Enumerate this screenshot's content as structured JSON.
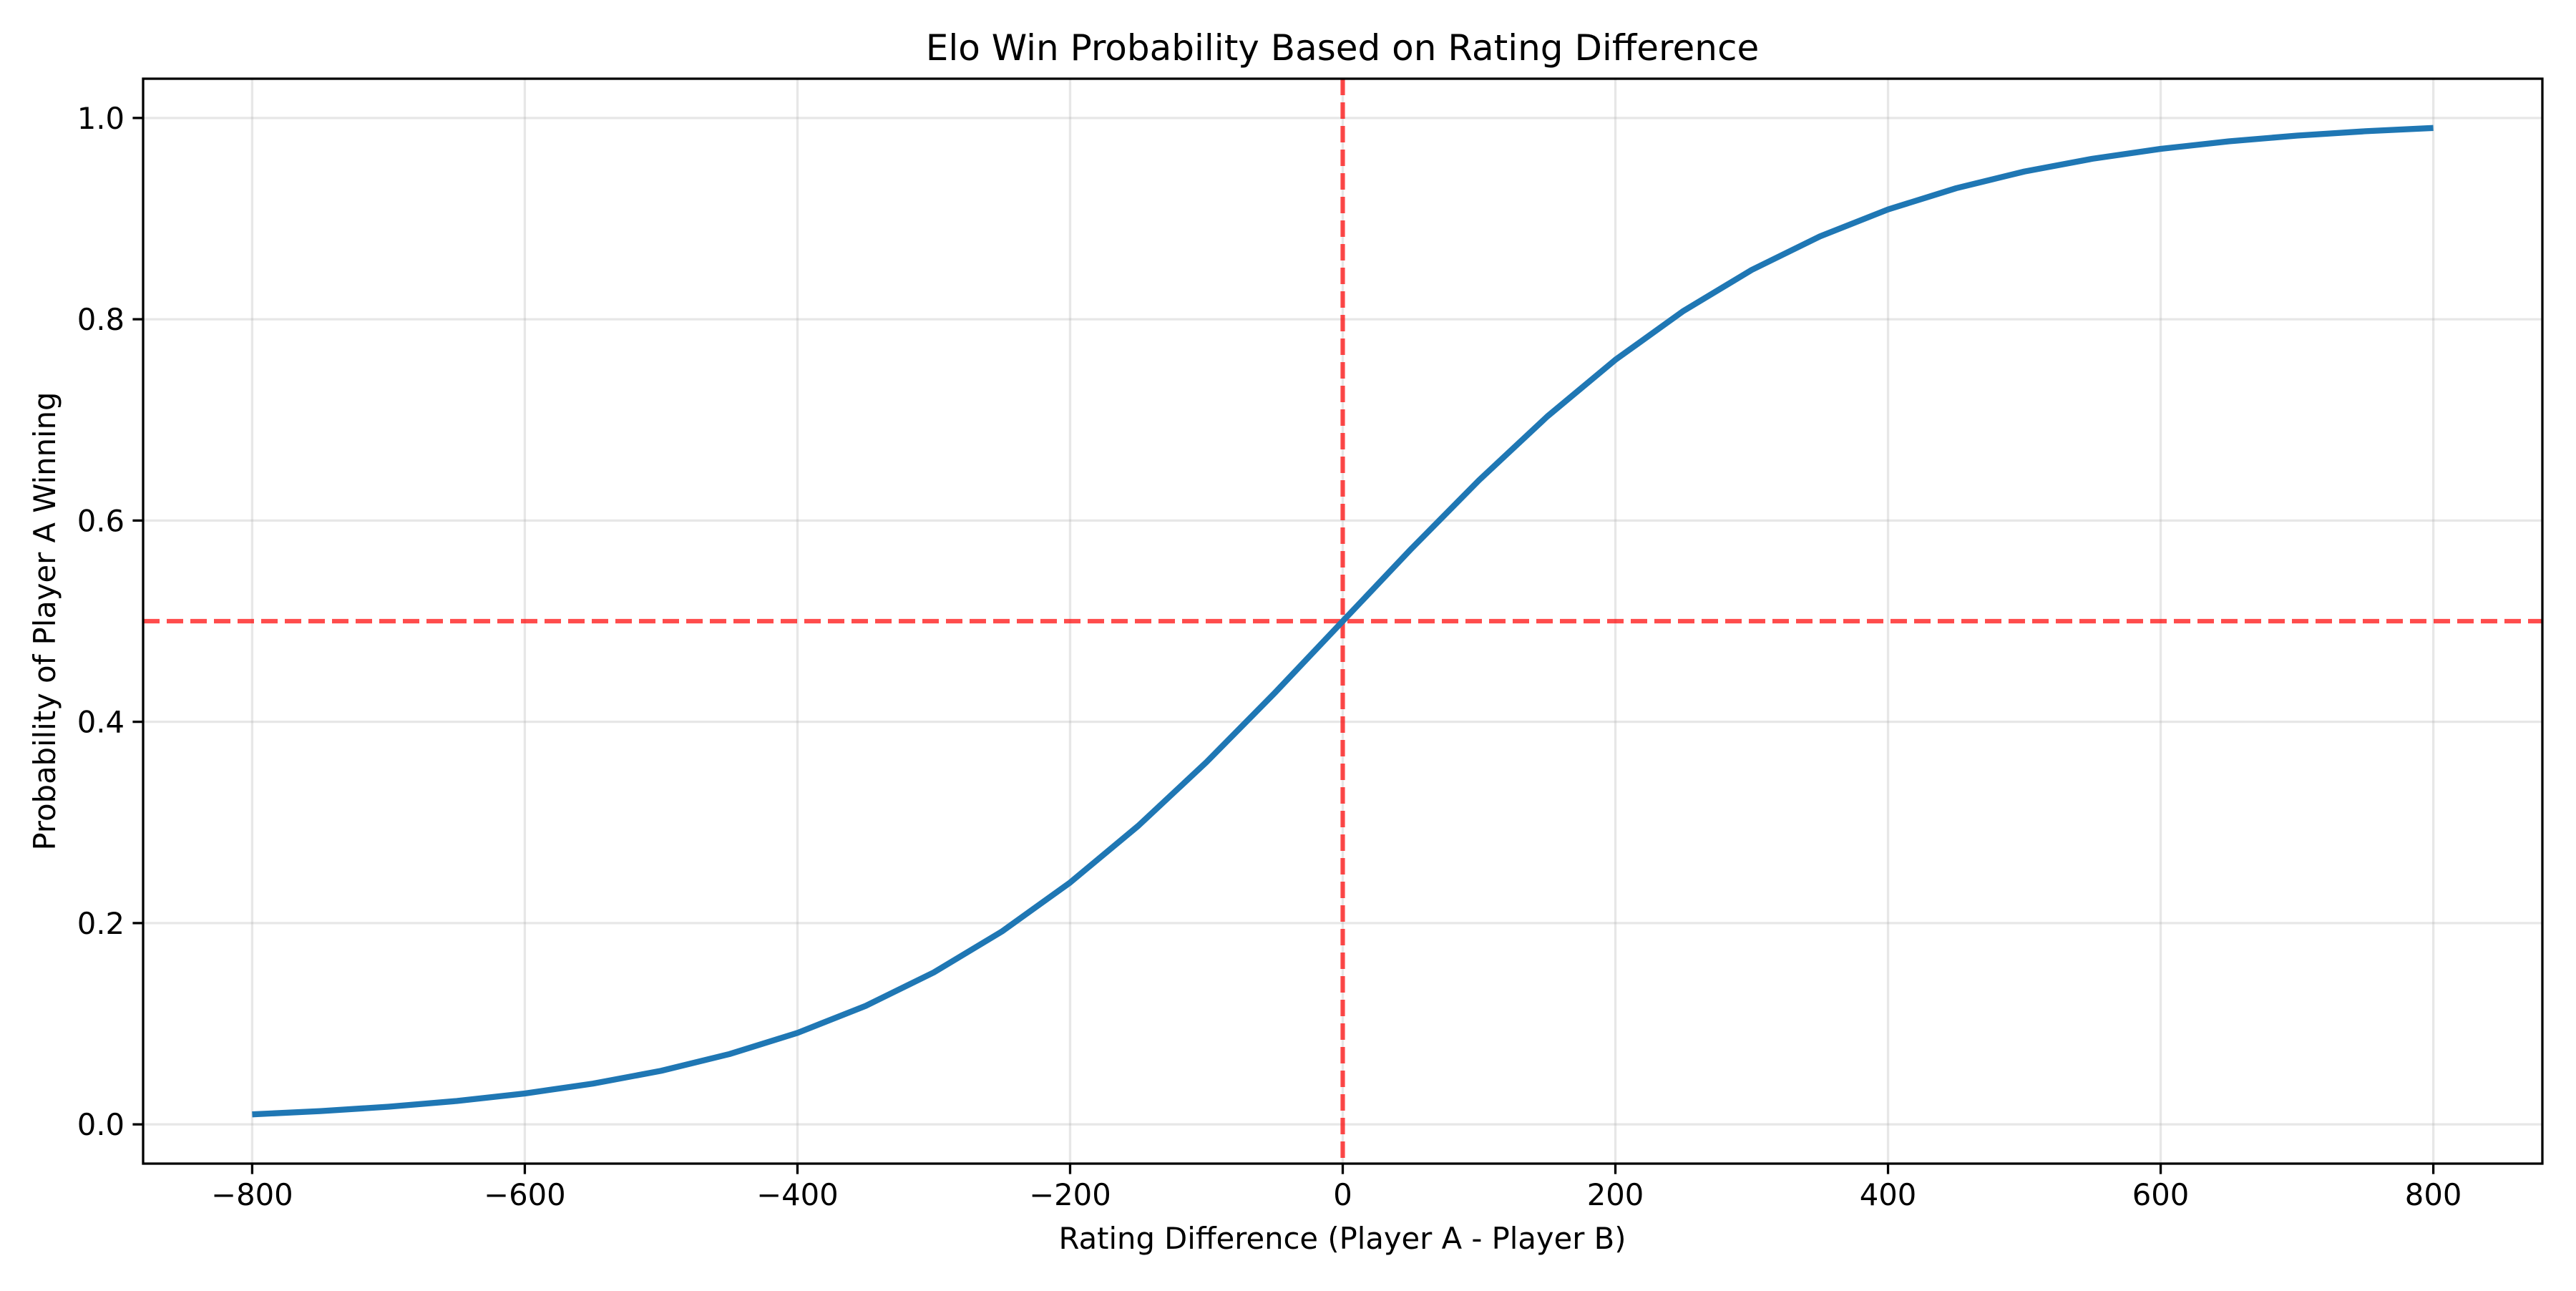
{
  "chart_data": {
    "type": "line",
    "title": "Elo Win Probability Based on Rating Difference",
    "xlabel": "Rating Difference (Player A - Player B)",
    "ylabel": "Probability of Player A Winning",
    "xlim": [
      -880,
      880
    ],
    "ylim": [
      -0.039,
      1.039
    ],
    "xticks": [
      -800,
      -600,
      -400,
      -200,
      0,
      200,
      400,
      600,
      800
    ],
    "xtick_labels": [
      "−800",
      "−600",
      "−400",
      "−200",
      "0",
      "200",
      "400",
      "600",
      "800"
    ],
    "yticks": [
      0.0,
      0.2,
      0.4,
      0.6,
      0.8,
      1.0
    ],
    "ytick_labels": [
      "0.0",
      "0.2",
      "0.4",
      "0.6",
      "0.8",
      "1.0"
    ],
    "grid": true,
    "series": [
      {
        "color": "#1f77b4",
        "x": [
          -800,
          -750,
          -700,
          -650,
          -600,
          -550,
          -500,
          -450,
          -400,
          -350,
          -300,
          -250,
          -200,
          -150,
          -100,
          -50,
          0,
          50,
          100,
          150,
          200,
          250,
          300,
          350,
          400,
          450,
          500,
          550,
          600,
          650,
          700,
          750,
          800
        ],
        "y": [
          0.0099,
          0.0132,
          0.0175,
          0.0232,
          0.0307,
          0.0405,
          0.0532,
          0.0698,
          0.0909,
          0.1177,
          0.151,
          0.1917,
          0.2403,
          0.2966,
          0.3599,
          0.4285,
          0.5,
          0.5715,
          0.6401,
          0.7034,
          0.7597,
          0.8083,
          0.849,
          0.8823,
          0.9091,
          0.9302,
          0.9468,
          0.9595,
          0.9693,
          0.9768,
          0.9825,
          0.9868,
          0.9901
        ]
      }
    ],
    "reference_lines": [
      {
        "orientation": "vertical",
        "x": 0,
        "color": "#ff0000",
        "style": "dashed"
      },
      {
        "orientation": "horizontal",
        "y": 0.5,
        "color": "#ff0000",
        "style": "dashed"
      }
    ]
  }
}
